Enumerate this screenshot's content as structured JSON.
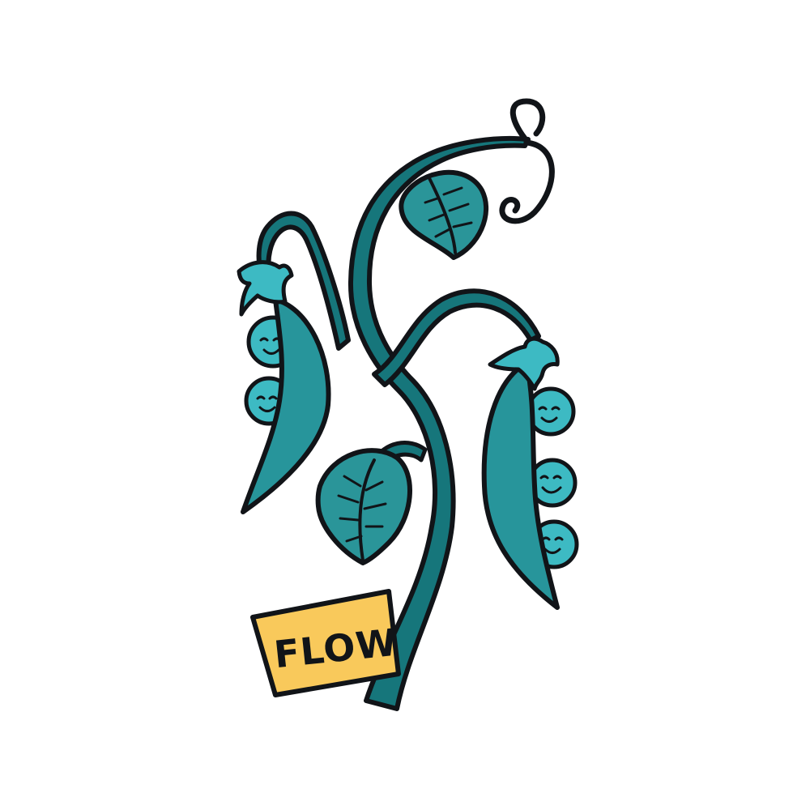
{
  "sign": {
    "text": "FLOW"
  },
  "colors": {
    "background": "#ffffff",
    "outline": "#111418",
    "stem": "#16767b",
    "leaf": "#2a9599",
    "pod": "#27959b",
    "pea": "#3dbac3",
    "sign": "#f9c95b"
  },
  "icons": [
    "pea-plant-illustration",
    "leaf-icon",
    "pea-pod-icon",
    "smiling-pea-icon",
    "flow-sign-icon"
  ]
}
